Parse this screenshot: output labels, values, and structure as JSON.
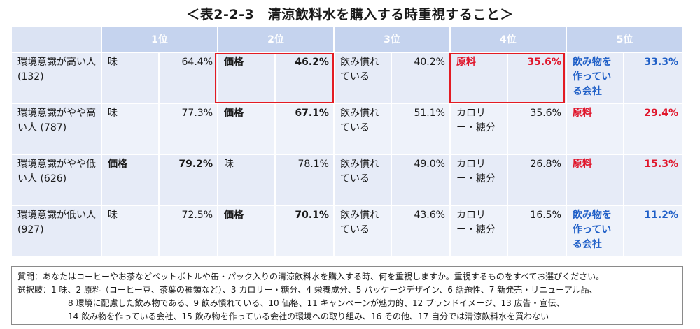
{
  "title": "＜表2-2-3　清涼飲料水を購入する時重視すること＞",
  "headers": [
    "1位",
    "2位",
    "3位",
    "4位",
    "5位"
  ],
  "rows": [
    {
      "label": "環境意識が高い人 (132)",
      "cells": [
        {
          "item": "味",
          "pct": "64.4%"
        },
        {
          "item": "価格",
          "pct": "46.2%"
        },
        {
          "item": "飲み慣れている",
          "pct": "40.2%"
        },
        {
          "item": "原料",
          "pct": "35.6%"
        },
        {
          "item": "飲み物を作っている会社",
          "pct": "33.3%"
        }
      ]
    },
    {
      "label": "環境意識がやや高い人 (787)",
      "cells": [
        {
          "item": "味",
          "pct": "77.3%"
        },
        {
          "item": "価格",
          "pct": "67.1%"
        },
        {
          "item": "飲み慣れている",
          "pct": "51.1%"
        },
        {
          "item": "カロリー・糖分",
          "pct": "35.6%"
        },
        {
          "item": "原料",
          "pct": "29.4%"
        }
      ]
    },
    {
      "label": "環境意識がやや低い人 (626)",
      "cells": [
        {
          "item": "価格",
          "pct": "79.2%"
        },
        {
          "item": "味",
          "pct": "78.1%"
        },
        {
          "item": "飲み慣れている",
          "pct": "49.0%"
        },
        {
          "item": "カロリー・糖分",
          "pct": "26.8%"
        },
        {
          "item": "原料",
          "pct": "15.3%"
        }
      ]
    },
    {
      "label": "環境意識が低い人 (927)",
      "cells": [
        {
          "item": "味",
          "pct": "72.5%"
        },
        {
          "item": "価格",
          "pct": "70.1%"
        },
        {
          "item": "飲み慣れている",
          "pct": "43.6%"
        },
        {
          "item": "カロリー・糖分",
          "pct": "16.5%"
        },
        {
          "item": "飲み物を作っている会社",
          "pct": "11.2%"
        }
      ]
    }
  ],
  "note": {
    "line1": "質問：あなたはコーヒーやお茶などペットボトルや缶・パック入りの清涼飲料水を購入する時、何を重視しますか。重視するものをすべてお選びください。",
    "line2": "選択肢：1 味、2 原料（コーヒー豆、茶葉の種類など）、3 カロリー・糖分、4 栄養成分、5 パッケージデザイン、6 話題性、7 新発売・リニューアル品、",
    "line3": "8 環境に配慮した飲み物である、9 飲み慣れている、10 価格、11 キャンペーンが魅力的、12 ブランドイメージ、13 広告・宣伝、",
    "line4": "14 飲み物を作っている会社、15 飲み物を作っている会社の環境への取り組み、16 その他、17 自分では清涼飲料水を買わない"
  },
  "colors": {
    "header": "#c5d3ee",
    "row": "#e6ebf7",
    "highlight": "#e31b23",
    "red_text": "#e0162b",
    "blue_text": "#1f5fc7"
  }
}
